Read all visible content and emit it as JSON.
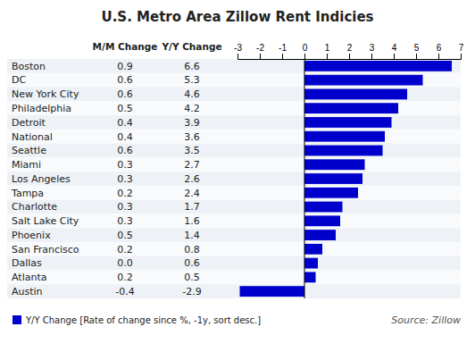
{
  "chart_data": {
    "type": "bar",
    "orientation": "horizontal",
    "title": "U.S. Metro Area Zillow Rent Indicies",
    "categories": [
      "Boston",
      "DC",
      "New York City",
      "Philadelphia",
      "Detroit",
      "National",
      "Seattle",
      "Miami",
      "Los Angeles",
      "Tampa",
      "Charlotte",
      "Salt Lake City",
      "Phoenix",
      "San Francisco",
      "Dallas",
      "Atlanta",
      "Austin"
    ],
    "series": [
      {
        "name": "Y/Y Change [Rate of change since %, -1y, sort desc.]",
        "color": "#0000cc",
        "values": [
          6.6,
          5.3,
          4.6,
          4.2,
          3.9,
          3.6,
          3.5,
          2.7,
          2.6,
          2.4,
          1.7,
          1.6,
          1.4,
          0.8,
          0.6,
          0.5,
          -2.9
        ]
      }
    ],
    "columns": [
      {
        "name": "M/M Change",
        "values": [
          0.9,
          0.6,
          0.6,
          0.5,
          0.4,
          0.4,
          0.6,
          0.3,
          0.3,
          0.2,
          0.3,
          0.3,
          0.5,
          0.2,
          0.0,
          0.2,
          -0.4
        ],
        "value_labels": [
          "0.9",
          "0.6",
          "0.6",
          "0.5",
          "0.4",
          "0.4",
          "0.6",
          "0.3",
          "0.3",
          "0.2",
          "0.3",
          "0.3",
          "0.5",
          "0.2",
          "0.0",
          "0.2",
          "-0.4"
        ]
      },
      {
        "name": "Y/Y Change",
        "values": [
          6.6,
          5.3,
          4.6,
          4.2,
          3.9,
          3.6,
          3.5,
          2.7,
          2.6,
          2.4,
          1.7,
          1.6,
          1.4,
          0.8,
          0.6,
          0.5,
          -2.9
        ],
        "value_labels": [
          "6.6",
          "5.3",
          "4.6",
          "4.2",
          "3.9",
          "3.6",
          "3.5",
          "2.7",
          "2.6",
          "2.4",
          "1.7",
          "1.6",
          "1.4",
          "0.8",
          "0.6",
          "0.5",
          "-2.9"
        ]
      }
    ],
    "xlim": [
      -3,
      7
    ],
    "xticks": [
      -3,
      -2,
      -1,
      0,
      1,
      2,
      3,
      4,
      5,
      6,
      7
    ],
    "legend": "bottom-left",
    "annotations": [
      "Source: Zillow"
    ]
  }
}
